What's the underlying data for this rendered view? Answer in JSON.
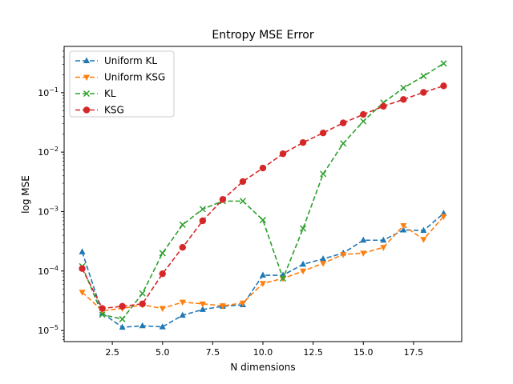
{
  "chart_data": {
    "type": "line",
    "title": "Entropy MSE Error",
    "xlabel": "N dimensions",
    "ylabel": "log MSE",
    "xlim": [
      0.1,
      19.9
    ],
    "ylim": [
      6.5e-06,
      0.6
    ],
    "yscale": "log",
    "grid": false,
    "legend_position": "top-left",
    "x_ticks": [
      2.5,
      5.0,
      7.5,
      10.0,
      12.5,
      15.0,
      17.5
    ],
    "x_tick_labels": [
      "2.5",
      "5.0",
      "7.5",
      "10.0",
      "12.5",
      "15.0",
      "17.5"
    ],
    "y_major_ticks": [
      1e-05,
      0.0001,
      0.001,
      0.01,
      0.1
    ],
    "y_tick_labels": [
      {
        "base": "10",
        "exp": "−5"
      },
      {
        "base": "10",
        "exp": "−4"
      },
      {
        "base": "10",
        "exp": "−3"
      },
      {
        "base": "10",
        "exp": "−2"
      },
      {
        "base": "10",
        "exp": "−1"
      }
    ],
    "x": [
      1,
      2,
      3,
      4,
      5,
      6,
      7,
      8,
      9,
      10,
      11,
      12,
      13,
      14,
      15,
      16,
      17,
      18,
      19
    ],
    "series": [
      {
        "name": "Uniform KL",
        "color": "#1f77b4",
        "marker": "triangle-up",
        "values": [
          0.00021,
          1.95e-05,
          1.13e-05,
          1.2e-05,
          1.15e-05,
          1.8e-05,
          2.25e-05,
          2.55e-05,
          2.7e-05,
          8.5e-05,
          8.5e-05,
          0.00013,
          0.00016,
          0.0002,
          0.00033,
          0.00033,
          0.00049,
          0.00048,
          0.00093
        ]
      },
      {
        "name": "Uniform KSG",
        "color": "#ff7f0e",
        "marker": "triangle-down",
        "values": [
          4.4e-05,
          2.15e-05,
          2.35e-05,
          2.7e-05,
          2.35e-05,
          3e-05,
          2.8e-05,
          2.6e-05,
          2.9e-05,
          6.2e-05,
          7.5e-05,
          0.0001,
          0.000135,
          0.00019,
          0.0002,
          0.00025,
          0.00058,
          0.00034,
          0.00083
        ]
      },
      {
        "name": "KL",
        "color": "#2ca02c",
        "marker": "x",
        "values": [
          0.00012,
          1.85e-05,
          1.55e-05,
          4.2e-05,
          0.0002,
          0.0006,
          0.0011,
          0.0015,
          0.0015,
          0.00072,
          7.5e-05,
          0.00052,
          0.0043,
          0.014,
          0.033,
          0.068,
          0.12,
          0.19,
          0.31
        ]
      },
      {
        "name": "KSG",
        "color": "#d62728",
        "marker": "circle",
        "values": [
          0.00011,
          2.35e-05,
          2.55e-05,
          2.8e-05,
          9e-05,
          0.00025,
          0.0007,
          0.0016,
          0.0032,
          0.0054,
          0.0094,
          0.0145,
          0.021,
          0.031,
          0.043,
          0.059,
          0.077,
          0.101,
          0.13
        ]
      }
    ]
  }
}
